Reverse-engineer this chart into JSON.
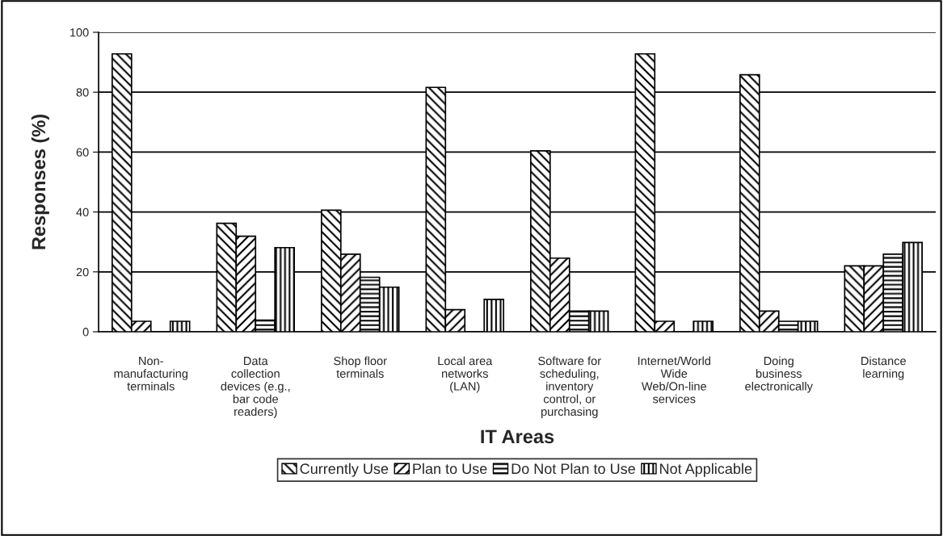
{
  "chart_data": {
    "type": "bar",
    "xlabel": "IT Areas",
    "ylabel": "Responses (%)",
    "categories": [
      "Non-\nmanufacturing\nterminals",
      "Data\ncollection\ndevices (e.g.,\nbar code\nreaders)",
      "Shop floor\nterminals",
      "Local area\nnetworks\n(LAN)",
      "Software for\nscheduling,\ninventory\ncontrol, or\npurchasing",
      "Internet/World\nWide\nWeb/On-line\nservices",
      "Doing\nbusiness\nelectronically",
      "Distance\nlearning"
    ],
    "series": [
      {
        "name": "Currently Use",
        "color": "#000000",
        "values": [
          92.8,
          36.2,
          40.6,
          81.6,
          60.4,
          92.8,
          85.8,
          22.0
        ]
      },
      {
        "name": "Plan to Use",
        "color": "#000000",
        "values": [
          3.5,
          31.9,
          25.9,
          7.4,
          24.6,
          3.5,
          6.9,
          22.0
        ]
      },
      {
        "name": "Do Not Plan to Use",
        "color": "#000000",
        "values": [
          0,
          3.9,
          18.2,
          0,
          6.9,
          0,
          3.5,
          25.9
        ]
      },
      {
        "name": "Not Applicable",
        "color": "#000000",
        "values": [
          3.5,
          28.1,
          14.9,
          10.8,
          6.9,
          3.5,
          3.5,
          29.8
        ]
      }
    ],
    "ylim": [
      0,
      100
    ],
    "yticks": [
      0,
      20,
      40,
      60,
      80,
      100
    ],
    "grid": "y",
    "legend": "bottom"
  }
}
